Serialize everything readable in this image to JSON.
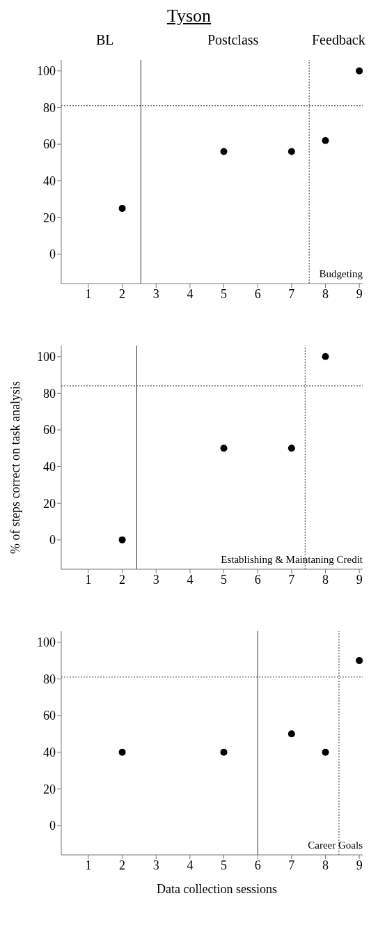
{
  "chart_data": [
    {
      "type": "scatter",
      "title": "Tyson",
      "annotations": [
        "BL",
        "Postclass",
        "Feedback",
        "Budgeting"
      ],
      "x": [
        2,
        5,
        7,
        8,
        9
      ],
      "values": [
        25,
        56,
        56,
        62,
        100
      ],
      "color": "#000000",
      "marker": "circle",
      "xlim": [
        0.2,
        9.1
      ],
      "ylim": [
        -16,
        106
      ],
      "xticks": [
        1,
        2,
        3,
        4,
        5,
        6,
        7,
        8,
        9
      ],
      "yticks": [
        0,
        20,
        40,
        60,
        80,
        100
      ],
      "ref_lines": [
        {
          "axis": "y",
          "value": 81,
          "line_style": "dotted"
        },
        {
          "axis": "x",
          "value": 2.55,
          "line_style": "solid"
        },
        {
          "axis": "x",
          "value": 7.52,
          "line_style": "dotted"
        }
      ]
    },
    {
      "type": "scatter",
      "ylabel": "% of steps correct on task analysis",
      "annotations": [
        "Establishing & Maintaning Credit"
      ],
      "x": [
        2,
        5,
        7,
        8
      ],
      "values": [
        0,
        50,
        50,
        100
      ],
      "color": "#000000",
      "marker": "circle",
      "xlim": [
        0.2,
        9.1
      ],
      "ylim": [
        -16,
        106
      ],
      "xticks": [
        1,
        2,
        3,
        4,
        5,
        6,
        7,
        8,
        9
      ],
      "yticks": [
        0,
        20,
        40,
        60,
        80,
        100
      ],
      "ref_lines": [
        {
          "axis": "y",
          "value": 84,
          "line_style": "dotted"
        },
        {
          "axis": "x",
          "value": 2.43,
          "line_style": "solid"
        },
        {
          "axis": "x",
          "value": 7.4,
          "line_style": "dotted"
        }
      ]
    },
    {
      "type": "scatter",
      "xlabel": "Data collection sessions",
      "annotations": [
        "Career Goals"
      ],
      "x": [
        2,
        5,
        7,
        8,
        9
      ],
      "values": [
        40,
        40,
        50,
        40,
        90
      ],
      "color": "#000000",
      "marker": "circle",
      "xlim": [
        0.2,
        9.1
      ],
      "ylim": [
        -16,
        106
      ],
      "xticks": [
        1,
        2,
        3,
        4,
        5,
        6,
        7,
        8,
        9
      ],
      "yticks": [
        0,
        20,
        40,
        60,
        80,
        100
      ],
      "ref_lines": [
        {
          "axis": "y",
          "value": 81,
          "line_style": "dotted"
        },
        {
          "axis": "x",
          "value": 6,
          "line_style": "solid"
        },
        {
          "axis": "x",
          "value": 8.4,
          "line_style": "dotted"
        }
      ]
    }
  ]
}
